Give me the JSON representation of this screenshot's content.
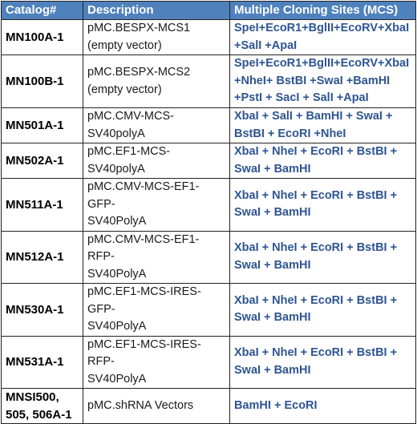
{
  "table": {
    "headers": [
      "Catalog#",
      "Description",
      "Multiple Cloning Sites (MCS)"
    ],
    "rows": [
      {
        "catalog": [
          "MN100A-1"
        ],
        "description": [
          "pMC.BESPX-MCS1",
          "(empty vector)"
        ],
        "mcs": [
          "SpeI+EcoR1+BglII+EcoRV+XbaI",
          "+SalI +ApaI"
        ]
      },
      {
        "catalog": [
          "MN100B-1"
        ],
        "description": [
          "pMC.BESPX-MCS2",
          "(empty vector)"
        ],
        "mcs": [
          "SpeI+EcoR1+BglII+EcoRV+XbaI",
          "+NheI+ BstBI +SwaI +BamHI",
          "+PstI + SacI + SalI +ApaI"
        ]
      },
      {
        "catalog": [
          "MN501A-1"
        ],
        "description": [
          "pMC.CMV-MCS-",
          "SV40polyA"
        ],
        "mcs": [
          "XbaI + SalI + BamHI + SwaI +",
          "BstBI + EcoRI +NheI"
        ]
      },
      {
        "catalog": [
          "MN502A-1"
        ],
        "description": [
          "pMC.EF1-MCS-",
          "SV40polyA"
        ],
        "mcs": [
          "XbaI + NheI + EcoRI + BstBI +",
          "SwaI + BamHI"
        ]
      },
      {
        "catalog": [
          "MN511A-1"
        ],
        "description": [
          "pMC.CMV-MCS-EF1-GFP-",
          "SV40PolyA"
        ],
        "mcs": [
          "XbaI + NheI + EcoRI + BstBI +",
          "SwaI + BamHI"
        ]
      },
      {
        "catalog": [
          "MN512A-1"
        ],
        "description": [
          "pMC.CMV-MCS-EF1-RFP-",
          "SV40PolyA"
        ],
        "mcs": [
          "XbaI + NheI + EcoRI + BstBI +",
          "SwaI + BamHI"
        ]
      },
      {
        "catalog": [
          "MN530A-1"
        ],
        "description": [
          "pMC.EF1-MCS-IRES-GFP-",
          "SV40PolyA"
        ],
        "mcs": [
          "XbaI + NheI + EcoRI + BstBI +",
          "SwaI + BamHI"
        ]
      },
      {
        "catalog": [
          "MN531A-1"
        ],
        "description": [
          "pMC.EF1-MCS-IRES-RFP-",
          "SV40PolyA"
        ],
        "mcs": [
          "XbaI + NheI + EcoRI + BstBI +",
          "SwaI + BamHI"
        ]
      },
      {
        "catalog": [
          "MNSI500,",
          "505, 506A-1"
        ],
        "description": [
          "pMC.shRNA Vectors"
        ],
        "mcs": [
          "BamHI + EcoRI"
        ]
      }
    ]
  },
  "colors": {
    "header_background": "#4f81bd",
    "header_text": "#ffffff",
    "mcs_text": "#2e5591",
    "border": "#222222"
  }
}
